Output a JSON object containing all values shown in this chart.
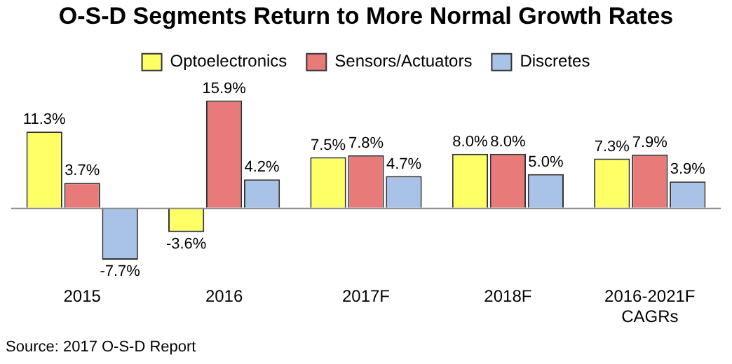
{
  "chart_data": {
    "type": "bar",
    "title": "O-S-D Segments Return to More Normal Growth Rates",
    "categories": [
      "2015",
      "2016",
      "2017F",
      "2018F",
      "2016-2021F CAGRs"
    ],
    "series": [
      {
        "name": "Optoelectronics",
        "color": "#ffff66",
        "values": [
          11.3,
          -3.6,
          7.5,
          8.0,
          7.3
        ],
        "value_labels": [
          "11.3%",
          "-3.6%",
          "7.5%",
          "8.0%",
          "7.3%"
        ]
      },
      {
        "name": "Sensors/Actuators",
        "color": "#e87a7a",
        "values": [
          3.7,
          15.9,
          7.8,
          8.0,
          7.9
        ],
        "value_labels": [
          "3.7%",
          "15.9%",
          "7.8%",
          "8.0%",
          "7.9%"
        ]
      },
      {
        "name": "Discretes",
        "color": "#a9c3e8",
        "values": [
          -7.7,
          4.2,
          4.7,
          5.0,
          3.9
        ],
        "value_labels": [
          "-7.7%",
          "4.2%",
          "4.7%",
          "5.0%",
          "3.9%"
        ]
      }
    ],
    "legend": "top",
    "grid": false,
    "annotations": [
      "Source: 2017 O-S-D Report"
    ]
  }
}
